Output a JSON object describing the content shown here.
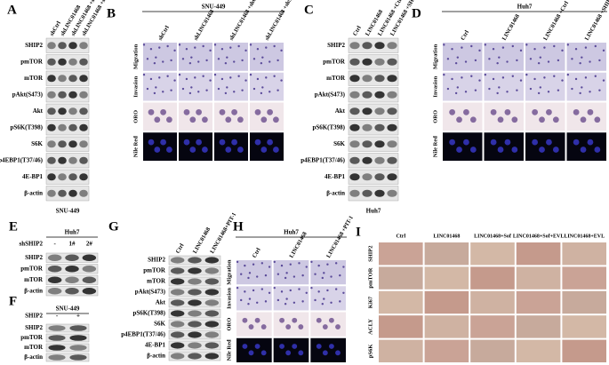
{
  "panels": [
    {
      "label": "A",
      "columns": [
        "shCtrl",
        "shLINC01468",
        "shLINC01468 +shCtrl",
        "shLINC01468 +shSHIP2"
      ],
      "rows": [
        "SHIP2",
        "pmTOR",
        "mTOR",
        "pAkt(S473)",
        "Akt",
        "pS6K(T398)",
        "S6K",
        "p4EBP1(T37/46)",
        "4E-BP1",
        "β-actin"
      ],
      "footer": "SNU-449"
    },
    {
      "label": "B",
      "header": "SNU-449",
      "columns": [
        "shCtrl",
        "shLINC01468",
        "shLINC01468 +shCtrl",
        "shLINC01468 +shSHIP2"
      ],
      "rows": [
        "Migration",
        "Invasion",
        "ORO",
        "Nile Red"
      ]
    },
    {
      "label": "C",
      "columns": [
        "Ctrl",
        "LINC01468",
        "LINC01468 +Ctrl",
        "LINC01468 +SHIP2"
      ],
      "rows": [
        "SHIP2",
        "pmTOR",
        "mTOR",
        "pAkt(S473)",
        "Akt",
        "pS6K(T398)",
        "S6K",
        "p4EBP1(T37/46)",
        "4E-BP1",
        "β-actin"
      ],
      "footer": "Huh7"
    },
    {
      "label": "D",
      "header": "Huh7",
      "columns": [
        "Ctrl",
        "LINC01468",
        "LINC01468 +Ctrl",
        "LINC01468 +SHIP2"
      ],
      "rows": [
        "Migration",
        "Invasion",
        "ORO",
        "Nile Red"
      ]
    },
    {
      "label": "E",
      "header": "Huh7",
      "condition": {
        "name": "shSHIP2",
        "values": [
          "-",
          "1#",
          "2#"
        ]
      },
      "rows": [
        "SHIP2",
        "pmTOR",
        "mTOR",
        "β-actin"
      ]
    },
    {
      "label": "F",
      "header": "SNU-449",
      "condition": {
        "name": "SHIP2",
        "values": [
          "-",
          "+"
        ]
      },
      "rows": [
        "SHIP2",
        "pmTOR",
        "mTOR",
        "β-actin"
      ]
    },
    {
      "label": "G",
      "columns": [
        "Ctrl",
        "LINC01468",
        "LINC01468+PIT-1"
      ],
      "rows": [
        "SHIP2",
        "pmTOR",
        "mTOR",
        "pAkt(S473)",
        "Akt",
        "pS6K(T398)",
        "S6K",
        "p4EBP1(T37/46)",
        "4E-BP1",
        "β-actin"
      ]
    },
    {
      "label": "H",
      "header": "Huh7",
      "columns": [
        "Ctrl",
        "LINC01468",
        "LINC01468 +PIT-1"
      ],
      "rows": [
        "Migration",
        "Invasion",
        "ORO",
        "Nile Red"
      ]
    },
    {
      "label": "I",
      "columns": [
        "Ctrl",
        "LINC01468",
        "LINC01468+Sof",
        "LINC01468+Sof+EVL",
        "LINC01468+EVL"
      ],
      "rows": [
        "SHIP2",
        "pmTOR",
        "Ki67",
        "ACLY",
        "pS6K"
      ]
    }
  ]
}
